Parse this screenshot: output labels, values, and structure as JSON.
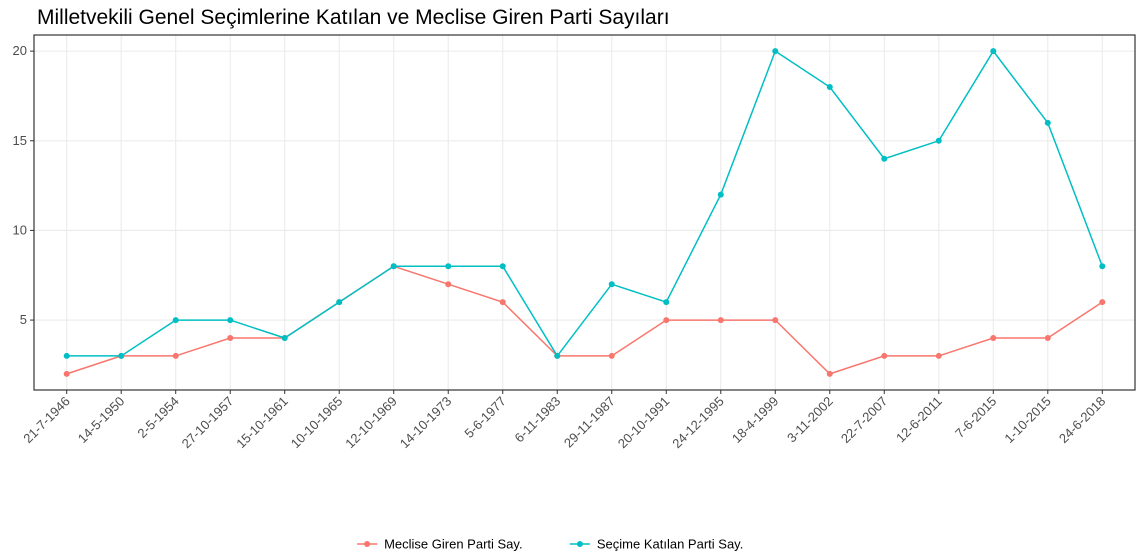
{
  "chart_data": {
    "type": "line",
    "title": "Milletvekili Genel Seçimlerine Katılan ve Meclise Giren Parti Sayıları",
    "categories": [
      "21-7-1946",
      "14-5-1950",
      "2-5-1954",
      "27-10-1957",
      "15-10-1961",
      "10-10-1965",
      "12-10-1969",
      "14-10-1973",
      "5-6-1977",
      "6-11-1983",
      "29-11-1987",
      "20-10-1991",
      "24-12-1995",
      "18-4-1999",
      "3-11-2002",
      "22-7-2007",
      "12-6-2011",
      "7-6-2015",
      "1-10-2015",
      "24-6-2018"
    ],
    "series": [
      {
        "name": "Meclise Giren Parti Say.",
        "color": "#F8766D",
        "values": [
          2,
          3,
          3,
          4,
          4,
          6,
          8,
          7,
          6,
          3,
          3,
          5,
          5,
          5,
          2,
          3,
          3,
          4,
          4,
          6
        ]
      },
      {
        "name": "Seçime Katılan Parti Say.",
        "color": "#00BFC4",
        "values": [
          3,
          3,
          5,
          5,
          4,
          6,
          8,
          8,
          8,
          3,
          7,
          6,
          12,
          20,
          18,
          14,
          15,
          20,
          16,
          8
        ]
      }
    ],
    "ylim": [
      1.1,
      20.9
    ],
    "yticks": [
      5,
      10,
      15,
      20
    ],
    "grid": true,
    "legend": "bottom"
  }
}
